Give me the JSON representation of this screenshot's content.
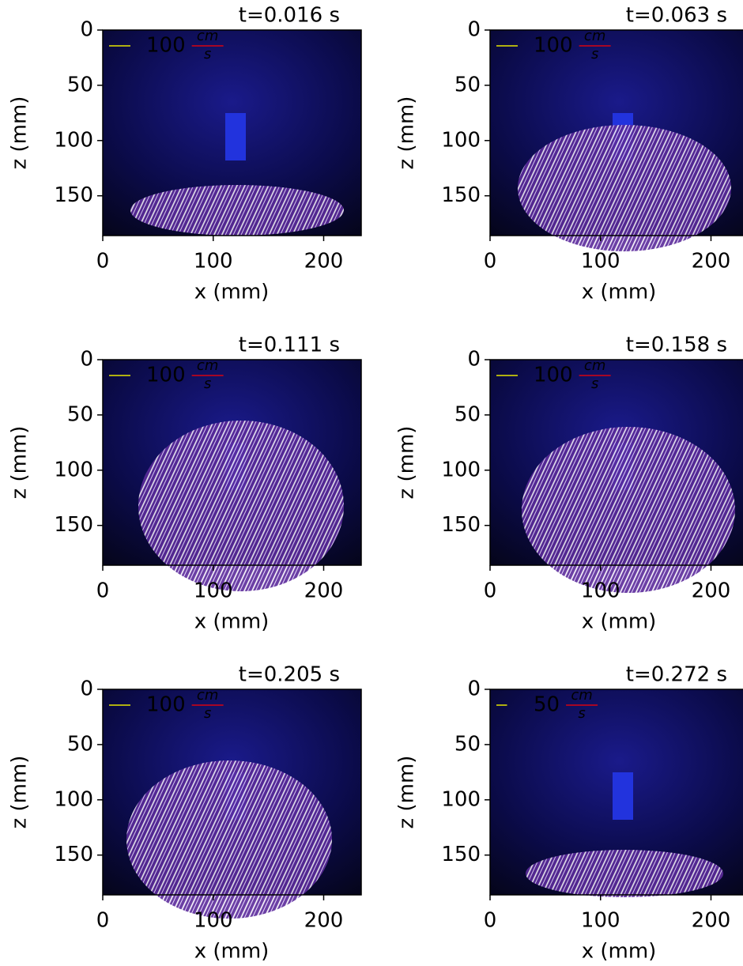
{
  "chart_data": [
    {
      "type": "quiver",
      "title": "t=0.016 s",
      "xlabel": "x (mm)",
      "ylabel": "z (mm)",
      "xlim": [
        0,
        234
      ],
      "ylim": [
        186,
        0
      ],
      "xticks": [
        0,
        100,
        200
      ],
      "yticks": [
        0,
        50,
        100,
        150
      ],
      "scale_arrow": {
        "value": 100,
        "unit_numerator": "cm",
        "unit_denominator": "s",
        "label_color": "#ff0000",
        "arrow_color": "#e6e600"
      }
    },
    {
      "type": "quiver",
      "title": "t=0.063 s",
      "xlabel": "x (mm)",
      "ylabel": "z (mm)",
      "xlim": [
        0,
        234
      ],
      "ylim": [
        186,
        0
      ],
      "xticks": [
        0,
        100,
        200
      ],
      "yticks": [
        0,
        50,
        100,
        150
      ],
      "scale_arrow": {
        "value": 100,
        "unit_numerator": "cm",
        "unit_denominator": "s",
        "label_color": "#ff0000",
        "arrow_color": "#e6e600"
      }
    },
    {
      "type": "quiver",
      "title": "t=0.111 s",
      "xlabel": "x (mm)",
      "ylabel": "z (mm)",
      "xlim": [
        0,
        234
      ],
      "ylim": [
        186,
        0
      ],
      "xticks": [
        0,
        100,
        200
      ],
      "yticks": [
        0,
        50,
        100,
        150
      ],
      "scale_arrow": {
        "value": 100,
        "unit_numerator": "cm",
        "unit_denominator": "s",
        "label_color": "#ff0000",
        "arrow_color": "#e6e600"
      }
    },
    {
      "type": "quiver",
      "title": "t=0.158 s",
      "xlabel": "x (mm)",
      "ylabel": "z (mm)",
      "xlim": [
        0,
        234
      ],
      "ylim": [
        186,
        0
      ],
      "xticks": [
        0,
        100,
        200
      ],
      "yticks": [
        0,
        50,
        100,
        150
      ],
      "scale_arrow": {
        "value": 100,
        "unit_numerator": "cm",
        "unit_denominator": "s",
        "label_color": "#ff0000",
        "arrow_color": "#e6e600"
      }
    },
    {
      "type": "quiver",
      "title": "t=0.205 s",
      "xlabel": "x (mm)",
      "ylabel": "z (mm)",
      "xlim": [
        0,
        234
      ],
      "ylim": [
        186,
        0
      ],
      "xticks": [
        0,
        100,
        200
      ],
      "yticks": [
        0,
        50,
        100,
        150
      ],
      "scale_arrow": {
        "value": 100,
        "unit_numerator": "cm",
        "unit_denominator": "s",
        "label_color": "#ff0000",
        "arrow_color": "#e6e600"
      }
    },
    {
      "type": "quiver",
      "title": "t=0.272 s",
      "xlabel": "x (mm)",
      "ylabel": "z (mm)",
      "xlim": [
        0,
        234
      ],
      "ylim": [
        186,
        0
      ],
      "xticks": [
        0,
        100,
        200
      ],
      "yticks": [
        0,
        50,
        100,
        150
      ],
      "scale_arrow": {
        "value": 50,
        "unit_numerator": "cm",
        "unit_denominator": "s",
        "label_color": "#ff0000",
        "arrow_color": "#e6e600"
      }
    }
  ]
}
